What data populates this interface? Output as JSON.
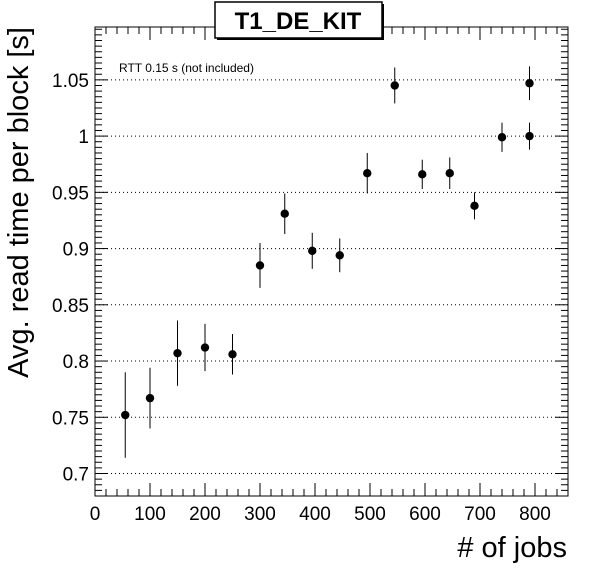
{
  "chart_data": {
    "type": "scatter",
    "title": "T1_DE_KIT",
    "xlabel": "# of jobs",
    "ylabel": "Avg. read time per block [s]",
    "annotation": "RTT 0.15 s (not included)",
    "xlim": [
      0,
      860
    ],
    "ylim": [
      0.68,
      1.097
    ],
    "x_ticks": [
      0,
      100,
      200,
      300,
      400,
      500,
      600,
      700,
      800
    ],
    "y_ticks": [
      0.7,
      0.75,
      0.8,
      0.85,
      0.9,
      0.95,
      1,
      1.05
    ],
    "y_tick_labels": [
      "0.7",
      "0.75",
      "0.8",
      "0.85",
      "0.9",
      "0.95",
      "1",
      "1.05"
    ],
    "grid": "horizontal dotted",
    "points": [
      {
        "x": 55,
        "y": 0.752,
        "err": 0.038
      },
      {
        "x": 100,
        "y": 0.767,
        "err": 0.027
      },
      {
        "x": 150,
        "y": 0.807,
        "err": 0.029
      },
      {
        "x": 200,
        "y": 0.812,
        "err": 0.021
      },
      {
        "x": 250,
        "y": 0.806,
        "err": 0.018
      },
      {
        "x": 300,
        "y": 0.885,
        "err": 0.02
      },
      {
        "x": 345,
        "y": 0.931,
        "err": 0.018
      },
      {
        "x": 395,
        "y": 0.898,
        "err": 0.016
      },
      {
        "x": 445,
        "y": 0.894,
        "err": 0.015
      },
      {
        "x": 495,
        "y": 0.967,
        "err": 0.018
      },
      {
        "x": 545,
        "y": 1.045,
        "err": 0.016
      },
      {
        "x": 595,
        "y": 0.966,
        "err": 0.013
      },
      {
        "x": 645,
        "y": 0.967,
        "err": 0.014
      },
      {
        "x": 690,
        "y": 0.938,
        "err": 0.012
      },
      {
        "x": 740,
        "y": 0.999,
        "err": 0.013
      },
      {
        "x": 790,
        "y": 1.0,
        "err": 0.012
      },
      {
        "x": 790,
        "y": 1.047,
        "err": 0.015
      }
    ],
    "marker_color": "#000000"
  }
}
